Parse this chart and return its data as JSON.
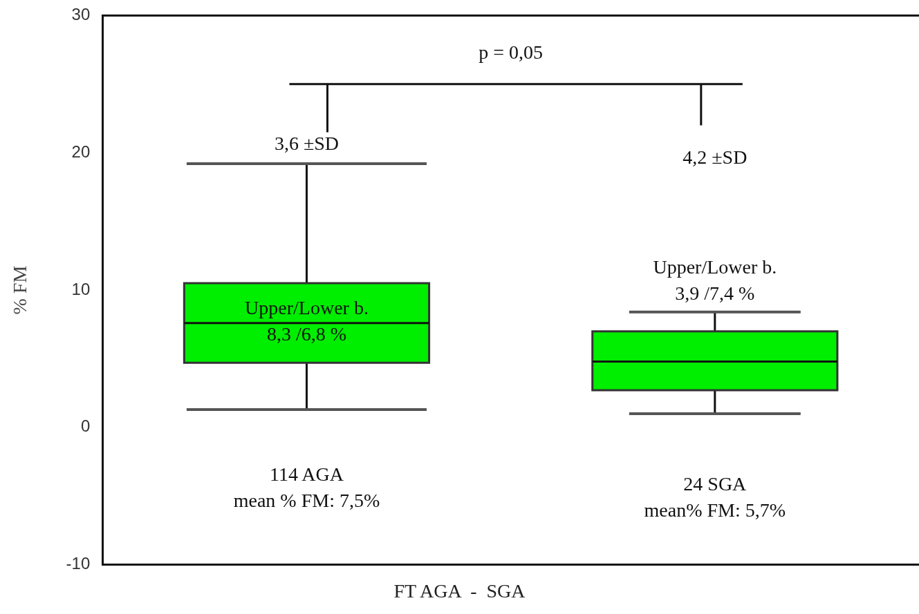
{
  "chart_data": {
    "type": "box",
    "xlabel": "FT AGA  -  SGA",
    "ylabel": "% FM",
    "categories": [
      null,
      null
    ],
    "color": "#00ee00",
    "boxes": [
      {
        "low": 1.3,
        "q1": 4.7,
        "median": 7.6,
        "q3": 10.5,
        "high": 19.2
      },
      {
        "low": 1.0,
        "q1": 2.7,
        "median": 4.8,
        "q3": 7.0,
        "high": 8.4
      }
    ],
    "ylim": [
      -10,
      30
    ],
    "yticks": [
      -10,
      0,
      10,
      20,
      30
    ],
    "grid": false,
    "legend": false,
    "annotations": [
      "p = 0,05",
      "3,6 ±SD",
      "4,2 ±SD",
      "Upper/Lower b.\n8,3 /6,8 %",
      "Upper/Lower b.\n3,9 /7,4 %",
      "114 AGA\nmean % FM: 7,5%",
      "24 SGA\nmean% FM: 5,7%"
    ]
  }
}
